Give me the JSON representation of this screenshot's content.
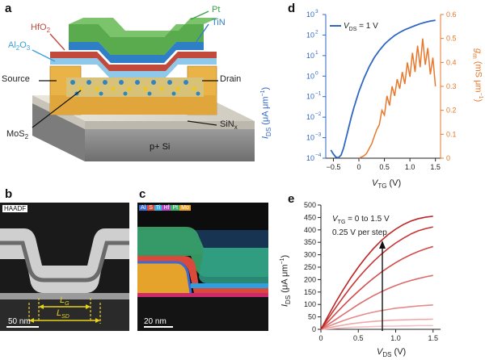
{
  "panels": {
    "a": "a",
    "b": "b",
    "c": "c",
    "d": "d",
    "e": "e"
  },
  "device": {
    "layers": [
      "Pt",
      "TiN",
      "HfO2",
      "Al2O3"
    ],
    "labels": {
      "pt": "Pt",
      "tin": "TiN",
      "hfo2": "HfO",
      "hfo2_sub": "2",
      "al2o3_a": "Al",
      "al2o3_sub1": "2",
      "al2o3_b": "O",
      "al2o3_sub2": "3",
      "source": "Source",
      "drain": "Drain",
      "mos2": "MoS",
      "mos2_sub": "2",
      "sinx": "SiN",
      "sinx_sub": "x",
      "substrate": "p+ Si"
    },
    "colors": {
      "pt": "#4fa14b",
      "tin": "#2f7fc6",
      "hfo2": "#d04a3a",
      "al2o3": "#3aa0d9",
      "contact": "#e9b347",
      "sin": "#d8d4cc",
      "si": "#8c8c8c"
    }
  },
  "haadf": {
    "tag": "HAADF",
    "lg": "L",
    "lg_sub": "G",
    "lsd": "L",
    "lsd_sub": "SD",
    "scale": "50 nm"
  },
  "eds": {
    "elements": [
      "Al",
      "S",
      "Ti",
      "Hf",
      "Pt",
      "Mo"
    ],
    "element_colors": [
      "#3c6bd1",
      "#d94a3a",
      "#3ab0e0",
      "#b648c8",
      "#3fb26a",
      "#e6a32b"
    ],
    "scale": "20 nm"
  },
  "chart_data": [
    {
      "type": "line",
      "panel": "d",
      "legend": "V_DS = 1 V",
      "legend_main": "V",
      "legend_sub": "DS",
      "legend_rest": " = 1 V",
      "xlabel_main": "V",
      "xlabel_sub": "TG",
      "xlabel_unit": " (V)",
      "ylabel_left": "I_DS (μA μm⁻¹)",
      "ylabel_left_main": "I",
      "ylabel_left_sub": "DS",
      "ylabel_left_unit": " (μA μm",
      "ylabel_left_exp": "−1",
      "ylabel_left_close": ")",
      "ylabel_right": "g_m (mS μm⁻¹)",
      "ylabel_right_main": "g",
      "ylabel_right_sub": "m",
      "ylabel_right_unit": " (mS μm",
      "ylabel_right_exp": "−1",
      "ylabel_right_close": ")",
      "xlim": [
        -0.65,
        1.6
      ],
      "xticks": [
        "−0.5",
        "0",
        "0.5",
        "1.0",
        "1.5"
      ],
      "xtick_values": [
        -0.5,
        0,
        0.5,
        1.0,
        1.5
      ],
      "ylim_left_log10": [
        -4,
        3
      ],
      "yticks_left": [
        "10",
        "10",
        "10",
        "10",
        "10",
        "10",
        "10",
        "10"
      ],
      "yticks_left_exp": [
        "−4",
        "−3",
        "−2",
        "−1",
        "0",
        "1",
        "2",
        "3"
      ],
      "ylim_right": [
        0,
        0.6
      ],
      "yticks_right": [
        "0",
        "0.1",
        "0.2",
        "0.3",
        "0.4",
        "0.5",
        "0.6"
      ],
      "series": [
        {
          "name": "I_DS",
          "color": "#2f66c4",
          "x": [
            -0.55,
            -0.5,
            -0.45,
            -0.4,
            -0.35,
            -0.3,
            -0.25,
            -0.2,
            -0.15,
            -0.1,
            -0.05,
            0,
            0.1,
            0.2,
            0.3,
            0.4,
            0.5,
            0.6,
            0.7,
            0.8,
            0.9,
            1.0,
            1.1,
            1.2,
            1.3,
            1.4,
            1.5
          ],
          "y_log10": [
            -3.6,
            -3.8,
            -3.95,
            -3.97,
            -3.85,
            -3.5,
            -3.0,
            -2.5,
            -2.0,
            -1.55,
            -1.15,
            -0.75,
            -0.1,
            0.45,
            0.9,
            1.25,
            1.55,
            1.78,
            1.98,
            2.13,
            2.26,
            2.36,
            2.46,
            2.55,
            2.62,
            2.68,
            2.72
          ]
        },
        {
          "name": "g_m",
          "color": "#e8782c",
          "x": [
            0,
            0.05,
            0.1,
            0.15,
            0.2,
            0.25,
            0.3,
            0.35,
            0.4,
            0.45,
            0.5,
            0.55,
            0.6,
            0.65,
            0.7,
            0.75,
            0.8,
            0.85,
            0.9,
            0.95,
            1.0,
            1.05,
            1.1,
            1.15,
            1.2,
            1.25,
            1.3,
            1.35,
            1.4,
            1.45,
            1.5
          ],
          "y": [
            0.0,
            0.005,
            0.01,
            0.02,
            0.04,
            0.06,
            0.09,
            0.12,
            0.14,
            0.2,
            0.18,
            0.26,
            0.22,
            0.3,
            0.26,
            0.33,
            0.29,
            0.36,
            0.31,
            0.4,
            0.34,
            0.44,
            0.36,
            0.47,
            0.38,
            0.5,
            0.39,
            0.46,
            0.35,
            0.42,
            0.3
          ]
        }
      ]
    },
    {
      "type": "line",
      "panel": "e",
      "annotation1_main": "V",
      "annotation1_sub": "TG",
      "annotation1_rest": " = 0 to 1.5 V",
      "annotation2": "0.25 V per step",
      "xlabel_main": "V",
      "xlabel_sub": "DS",
      "xlabel_unit": " (V)",
      "ylabel_main": "I",
      "ylabel_sub": "DS",
      "ylabel_unit": " (μA μm",
      "ylabel_exp": "−1",
      "ylabel_close": ")",
      "xlim": [
        0,
        1.6
      ],
      "xticks": [
        "0",
        "0.5",
        "1.0",
        "1.5"
      ],
      "xtick_values": [
        0,
        0.5,
        1.0,
        1.5
      ],
      "ylim": [
        0,
        500
      ],
      "yticks": [
        "0",
        "50",
        "100",
        "150",
        "200",
        "250",
        "300",
        "350",
        "400",
        "450",
        "500"
      ],
      "x": [
        0,
        0.1,
        0.2,
        0.3,
        0.4,
        0.5,
        0.6,
        0.7,
        0.8,
        0.9,
        1.0,
        1.1,
        1.2,
        1.3,
        1.4,
        1.5
      ],
      "series": [
        {
          "color": "#f2c2c2",
          "values": [
            0,
            2,
            4,
            6,
            8,
            9,
            10,
            11,
            12,
            13,
            13,
            14,
            14,
            15,
            15,
            15
          ]
        },
        {
          "color": "#eea8a8",
          "values": [
            0,
            6,
            12,
            17,
            22,
            26,
            29,
            32,
            34,
            36,
            37,
            38,
            39,
            40,
            40,
            41
          ]
        },
        {
          "color": "#e58a8a",
          "values": [
            0,
            12,
            24,
            35,
            45,
            54,
            62,
            69,
            75,
            80,
            85,
            88,
            91,
            94,
            96,
            98
          ]
        },
        {
          "color": "#dc6b6b",
          "values": [
            0,
            20,
            40,
            60,
            80,
            100,
            118,
            135,
            150,
            164,
            176,
            187,
            196,
            204,
            211,
            217
          ]
        },
        {
          "color": "#d24c4c",
          "values": [
            0,
            32,
            64,
            95,
            125,
            153,
            180,
            205,
            228,
            249,
            268,
            285,
            300,
            313,
            324,
            333
          ]
        },
        {
          "color": "#c83434",
          "values": [
            0,
            45,
            88,
            130,
            170,
            207,
            241,
            272,
            300,
            325,
            347,
            366,
            383,
            396,
            405,
            412
          ]
        },
        {
          "color": "#bd2424",
          "values": [
            0,
            56,
            110,
            160,
            207,
            250,
            289,
            324,
            355,
            381,
            403,
            421,
            435,
            445,
            451,
            455
          ]
        }
      ]
    }
  ]
}
